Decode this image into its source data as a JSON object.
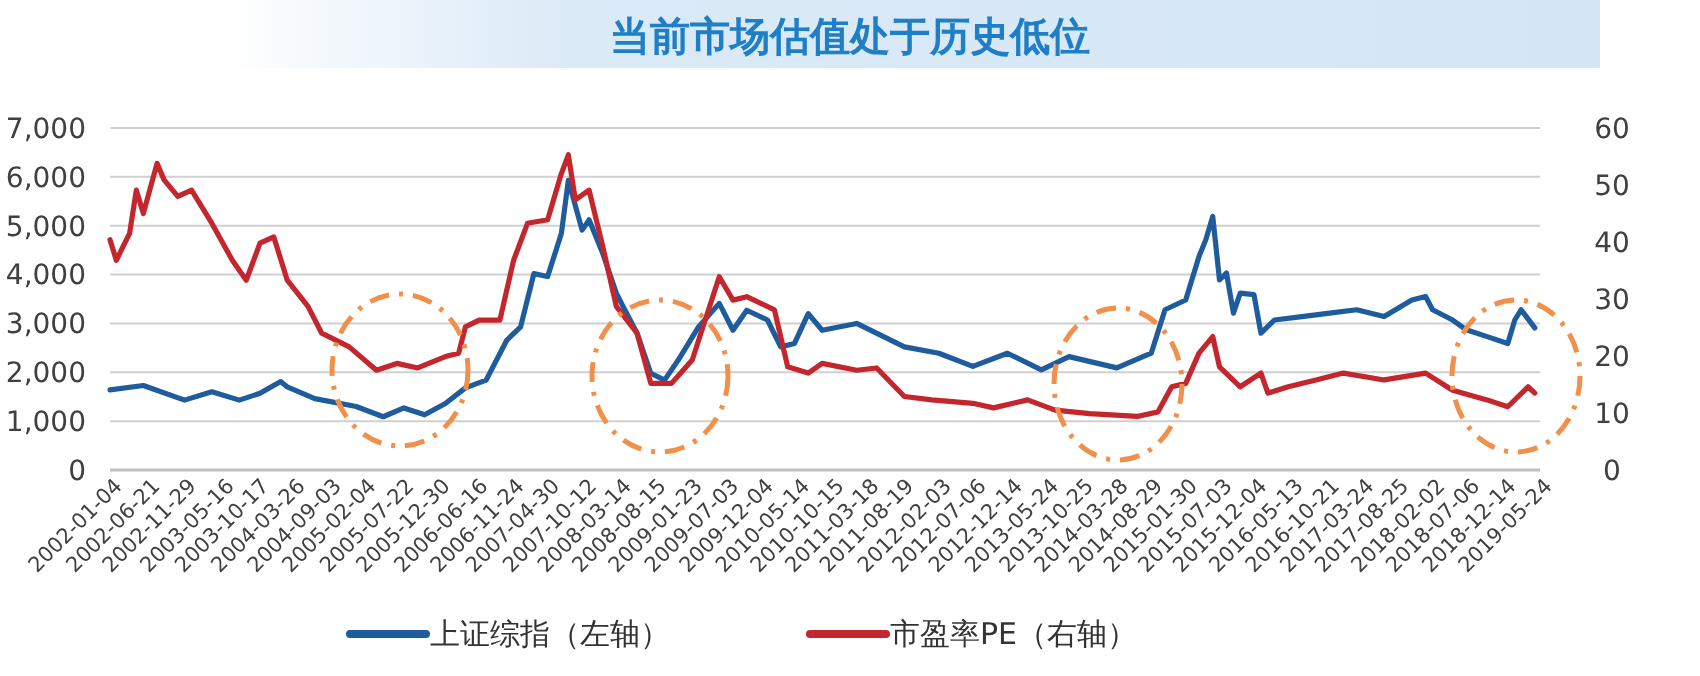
{
  "chart_data": {
    "type": "line",
    "title": "当前市场估值处于历史低位",
    "xlim": [
      "2002-01-04",
      "2019-05-24"
    ],
    "xticks": [
      "2002-01-04",
      "2002-06-21",
      "2002-11-29",
      "2003-05-16",
      "2003-10-17",
      "2004-03-26",
      "2004-09-03",
      "2005-02-04",
      "2005-07-22",
      "2005-12-30",
      "2006-06-16",
      "2006-11-24",
      "2007-04-30",
      "2007-10-12",
      "2008-03-14",
      "2008-08-15",
      "2009-01-23",
      "2009-07-03",
      "2009-12-04",
      "2010-05-14",
      "2010-10-15",
      "2011-03-18",
      "2011-08-19",
      "2012-02-03",
      "2012-07-06",
      "2012-12-14",
      "2013-05-24",
      "2013-10-25",
      "2014-03-28",
      "2014-08-29",
      "2015-01-30",
      "2015-07-03",
      "2015-12-04",
      "2016-05-13",
      "2016-10-21",
      "2017-03-24",
      "2017-08-25",
      "2018-02-02",
      "2018-07-06",
      "2018-12-14",
      "2019-05-24"
    ],
    "ylim": [
      0,
      7000
    ],
    "yticks": [
      0,
      {
        "value": 1000,
        "label": "1,000"
      },
      {
        "value": 2000,
        "label": "2,000"
      },
      {
        "value": 3000,
        "label": "3,000"
      },
      {
        "value": 4000,
        "label": "4,000"
      },
      {
        "value": 5000,
        "label": "5,000"
      },
      {
        "value": 6000,
        "label": "6,000"
      },
      {
        "value": 7000,
        "label": "7,000"
      }
    ],
    "y2lim": [
      0,
      60
    ],
    "y2ticks": [
      0,
      10,
      20,
      30,
      40,
      50,
      60
    ],
    "grid": "y",
    "legend": "bottom",
    "marker": "none",
    "line_style": "solid",
    "series": [
      {
        "name": "上证综指（左轴）",
        "color": "#1f5c9e",
        "axis": "y",
        "x": [
          "2002-01-04",
          "2002-06",
          "2002-12",
          "2003-04",
          "2003-08",
          "2003-11",
          "2004-02",
          "2004-03",
          "2004-07",
          "2005-01",
          "2005-05",
          "2005-08",
          "2005-11",
          "2006-02",
          "2006-05",
          "2006-08",
          "2006-11",
          "2007-01",
          "2007-03",
          "2007-05",
          "2007-07",
          "2007-08",
          "2007-10",
          "2007-11",
          "2008-01",
          "2008-03",
          "2008-04",
          "2008-06",
          "2008-08",
          "2008-10",
          "2008-12",
          "2009-03",
          "2009-06",
          "2009-08",
          "2009-10",
          "2010-01",
          "2010-03",
          "2010-05",
          "2010-07",
          "2010-09",
          "2011-02",
          "2011-09",
          "2012-02",
          "2012-07",
          "2012-12",
          "2013-05",
          "2013-09",
          "2014-04",
          "2014-09",
          "2014-11",
          "2015-02",
          "2015-04",
          "2015-05",
          "2015-06",
          "2015-07",
          "2015-08",
          "2015-09",
          "2015-10",
          "2015-12",
          "2016-01",
          "2016-03",
          "2016-07",
          "2016-11",
          "2017-03",
          "2017-07",
          "2017-11",
          "2018-01",
          "2018-02",
          "2018-05",
          "2018-07",
          "2018-10",
          "2019-01",
          "2019-02",
          "2019-03",
          "2019-05"
        ],
        "values": [
          1640,
          1730,
          1430,
          1600,
          1430,
          1570,
          1810,
          1700,
          1460,
          1300,
          1090,
          1270,
          1130,
          1360,
          1680,
          1840,
          2660,
          2930,
          4020,
          3960,
          4840,
          5930,
          4910,
          5120,
          4430,
          3620,
          3340,
          2800,
          1980,
          1840,
          2250,
          2930,
          3410,
          2860,
          3270,
          3070,
          2520,
          2590,
          3200,
          2860,
          3000,
          2520,
          2390,
          2120,
          2390,
          2050,
          2320,
          2090,
          2390,
          3280,
          3480,
          4370,
          4710,
          5190,
          3890,
          4030,
          3210,
          3620,
          3590,
          2800,
          3070,
          3140,
          3210,
          3280,
          3140,
          3480,
          3550,
          3280,
          3070,
          2870,
          2730,
          2590,
          3070,
          3280,
          2910
        ]
      },
      {
        "name": "市盈率PE（右轴）",
        "color": "#c4262e",
        "axis": "y2",
        "x": [
          "2002-01-04",
          "2002-02",
          "2002-04",
          "2002-05",
          "2002-06",
          "2002-08",
          "2002-09",
          "2002-11",
          "2003-01",
          "2003-04",
          "2003-07",
          "2003-09",
          "2003-11",
          "2004-01",
          "2004-03",
          "2004-06",
          "2004-08",
          "2004-12",
          "2005-04",
          "2005-07",
          "2005-10",
          "2006-02",
          "2006-04",
          "2006-05",
          "2006-07",
          "2006-10",
          "2006-12",
          "2007-02",
          "2007-05",
          "2007-07",
          "2007-08",
          "2007-09",
          "2007-11",
          "2008-01",
          "2008-03",
          "2008-06",
          "2008-08",
          "2008-11",
          "2009-02",
          "2009-06",
          "2009-08",
          "2009-10",
          "2010-02",
          "2010-04",
          "2010-07",
          "2010-09",
          "2011-02",
          "2011-05",
          "2011-09",
          "2012-01",
          "2012-07",
          "2012-10",
          "2013-03",
          "2013-07",
          "2013-12",
          "2014-07",
          "2014-10",
          "2014-12",
          "2015-02",
          "2015-04",
          "2015-06",
          "2015-07",
          "2015-10",
          "2016-01",
          "2016-02",
          "2016-05",
          "2016-09",
          "2017-01",
          "2017-07",
          "2018-01",
          "2018-05",
          "2018-10",
          "2019-01",
          "2019-04",
          "2019-05"
        ],
        "values": [
          40.4,
          36.8,
          41.5,
          49.1,
          45.0,
          53.8,
          50.9,
          48.0,
          49.1,
          43.3,
          36.8,
          33.3,
          39.8,
          40.9,
          33.3,
          28.7,
          24.0,
          21.6,
          17.5,
          18.7,
          17.9,
          19.9,
          20.5,
          25.1,
          26.3,
          26.3,
          36.8,
          43.3,
          43.9,
          52.0,
          55.3,
          47.4,
          49.1,
          39.2,
          28.7,
          24.0,
          15.2,
          15.2,
          19.3,
          33.9,
          29.8,
          30.4,
          28.1,
          18.1,
          17.0,
          18.7,
          17.5,
          17.9,
          12.9,
          12.3,
          11.7,
          10.9,
          12.3,
          10.5,
          9.9,
          9.4,
          10.2,
          14.6,
          15.2,
          20.5,
          23.4,
          18.1,
          14.6,
          17.0,
          13.5,
          14.6,
          15.8,
          17.0,
          15.8,
          17.0,
          14.0,
          12.3,
          11.1,
          14.6,
          13.5
        ]
      }
    ]
  }
}
